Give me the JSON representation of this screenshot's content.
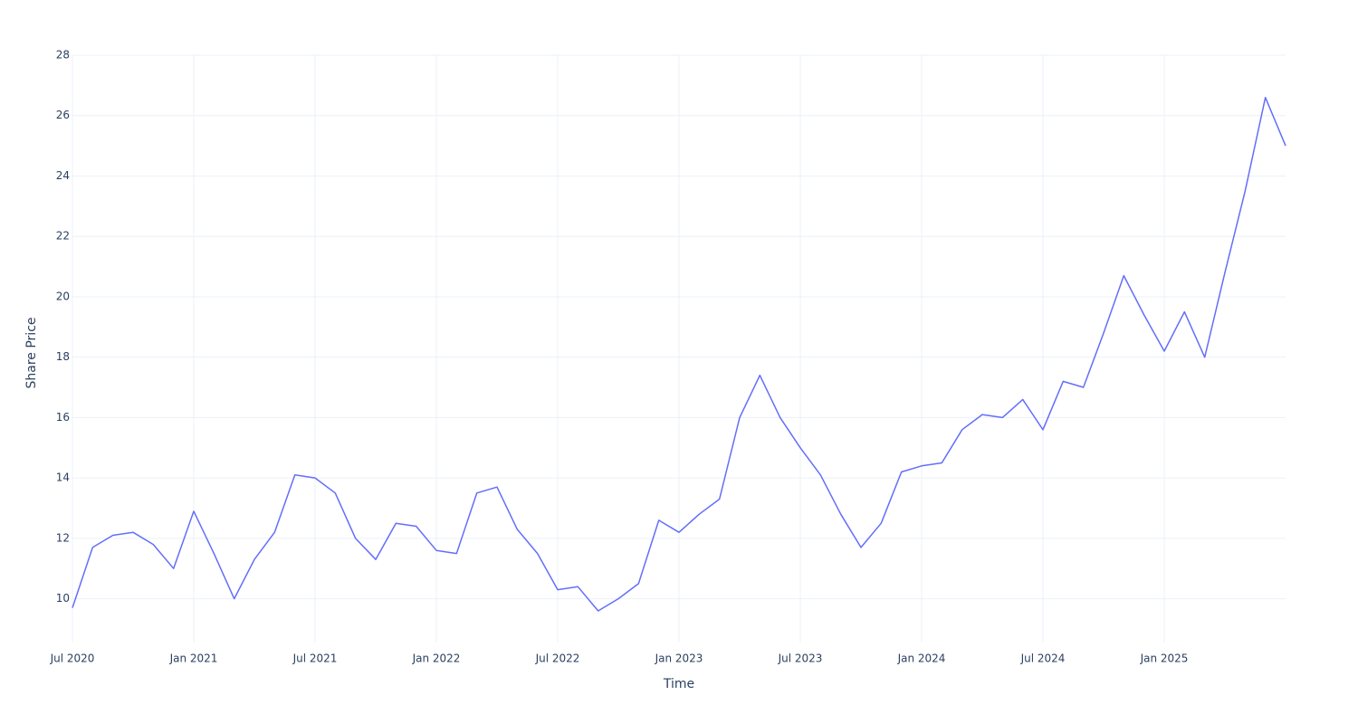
{
  "chart_data": {
    "type": "line",
    "x_label": "Time",
    "y_label": "Share Price",
    "x": [
      "2020-07",
      "2020-08",
      "2020-09",
      "2020-10",
      "2020-11",
      "2020-12",
      "2021-01",
      "2021-02",
      "2021-03",
      "2021-04",
      "2021-05",
      "2021-06",
      "2021-07",
      "2021-08",
      "2021-09",
      "2021-10",
      "2021-11",
      "2021-12",
      "2022-01",
      "2022-02",
      "2022-03",
      "2022-04",
      "2022-05",
      "2022-06",
      "2022-07",
      "2022-08",
      "2022-09",
      "2022-10",
      "2022-11",
      "2022-12",
      "2023-01",
      "2023-02",
      "2023-03",
      "2023-04",
      "2023-05",
      "2023-06",
      "2023-07",
      "2023-08",
      "2023-09",
      "2023-10",
      "2023-11",
      "2023-12",
      "2024-01",
      "2024-02",
      "2024-03",
      "2024-04",
      "2024-05",
      "2024-06",
      "2024-07",
      "2024-08",
      "2024-09",
      "2024-10",
      "2024-11",
      "2024-12",
      "2025-01",
      "2025-02",
      "2025-03",
      "2025-04",
      "2025-05",
      "2025-06",
      "2025-07"
    ],
    "series": [
      {
        "name": "Share Price",
        "color": "#636efa",
        "values": [
          9.7,
          11.7,
          12.1,
          12.2,
          11.8,
          11.0,
          12.9,
          11.5,
          10.0,
          11.3,
          12.2,
          14.1,
          14.0,
          13.5,
          12.0,
          11.3,
          12.5,
          12.4,
          11.6,
          11.5,
          13.5,
          13.7,
          12.3,
          11.5,
          10.3,
          10.4,
          9.6,
          10.0,
          10.5,
          12.6,
          12.2,
          12.8,
          13.3,
          16.0,
          17.4,
          16.0,
          15.0,
          14.1,
          12.8,
          11.7,
          12.5,
          14.2,
          14.4,
          14.5,
          15.6,
          16.1,
          16.0,
          16.6,
          15.6,
          17.2,
          17.0,
          18.8,
          20.7,
          19.4,
          18.2,
          19.5,
          18.0,
          20.8,
          23.5,
          26.6,
          25.0
        ]
      }
    ],
    "xlim": [
      "2020-07",
      "2025-07"
    ],
    "xticks": [
      {
        "value": "2020-07",
        "label": "Jul 2020"
      },
      {
        "value": "2021-01",
        "label": "Jan 2021"
      },
      {
        "value": "2021-07",
        "label": "Jul 2021"
      },
      {
        "value": "2022-01",
        "label": "Jan 2022"
      },
      {
        "value": "2022-07",
        "label": "Jul 2022"
      },
      {
        "value": "2023-01",
        "label": "Jan 2023"
      },
      {
        "value": "2023-07",
        "label": "Jul 2023"
      },
      {
        "value": "2024-01",
        "label": "Jan 2024"
      },
      {
        "value": "2024-07",
        "label": "Jul 2024"
      },
      {
        "value": "2025-01",
        "label": "Jan 2025"
      }
    ],
    "ylim": [
      8.55,
      28
    ],
    "yticks": [
      10,
      12,
      14,
      16,
      18,
      20,
      22,
      24,
      26,
      28
    ],
    "grid": true
  }
}
